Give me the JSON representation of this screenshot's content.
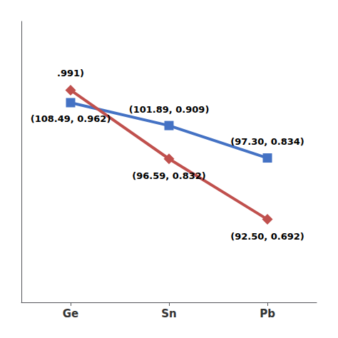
{
  "chart_data": {
    "type": "line",
    "categories": [
      "Ge",
      "Sn",
      "Pb"
    ],
    "series": [
      {
        "color": "#4472C4",
        "marker": "square",
        "values": [
          0.962,
          0.909,
          0.834
        ],
        "annotations": [
          "(108.49, 0.962)",
          "(101.89, 0.909)",
          "(97.30, 0.834)"
        ]
      },
      {
        "color": "#C0504D",
        "marker": "diamond",
        "values": [
          0.991,
          0.832,
          0.692
        ],
        "annotations": [
          ".991)",
          "(96.59, 0.832)",
          "(92.50, 0.692)"
        ]
      }
    ],
    "ylim": [
      0.5,
      1.15
    ],
    "grid": false,
    "tick_labels": "x"
  }
}
